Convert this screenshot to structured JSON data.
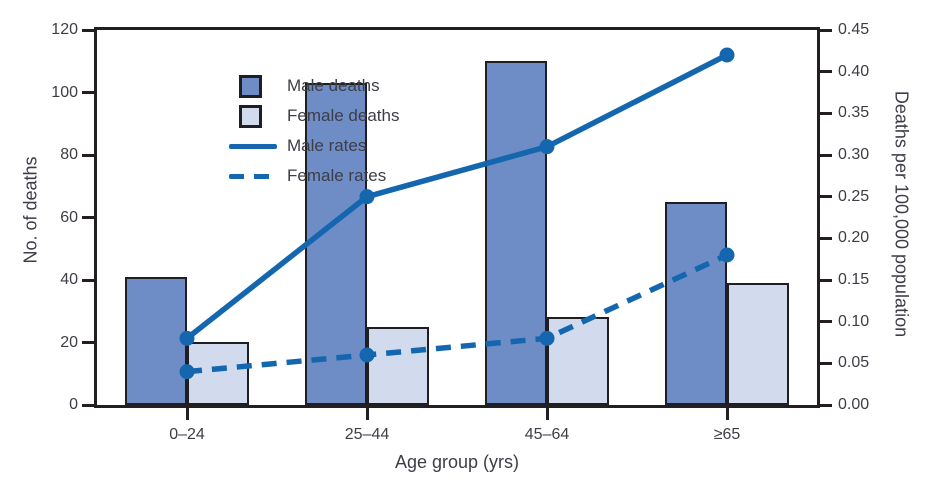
{
  "chart_data": {
    "type": "bar+line",
    "categories": [
      "0–24",
      "25–44",
      "45–64",
      "≥65"
    ],
    "bar_series": [
      {
        "name": "Male deaths",
        "values": [
          41,
          103,
          110,
          65
        ],
        "fill": "#6e8dc6",
        "border": "#1f1f23"
      },
      {
        "name": "Female deaths",
        "values": [
          20,
          25,
          28,
          39
        ],
        "fill": "#d2daed",
        "border": "#1f1f23"
      }
    ],
    "line_series": [
      {
        "name": "Male rates",
        "values": [
          0.08,
          0.25,
          0.31,
          0.42
        ],
        "style": "solid",
        "color": "#1467ae"
      },
      {
        "name": "Female rates",
        "values": [
          0.04,
          0.06,
          0.08,
          0.18
        ],
        "style": "dashed",
        "color": "#1467ae"
      }
    ],
    "left_axis": {
      "label": "No. of deaths",
      "min": 0,
      "max": 120,
      "tick_labels": [
        "0",
        "20",
        "40",
        "60",
        "80",
        "100",
        "120"
      ]
    },
    "right_axis": {
      "label": "Deaths per 100,000 population",
      "min": 0,
      "max": 0.45,
      "tick_labels": [
        "0.00",
        "0.05",
        "0.10",
        "0.15",
        "0.20",
        "0.25",
        "0.30",
        "0.35",
        "0.40",
        "0.45"
      ]
    },
    "x_axis": {
      "label": "Age group (yrs)"
    },
    "legend_position": "top-left-inside",
    "grid": false,
    "colors": {
      "axis": "#231f20",
      "text": "#3d3d46",
      "background": "#ffffff"
    }
  }
}
